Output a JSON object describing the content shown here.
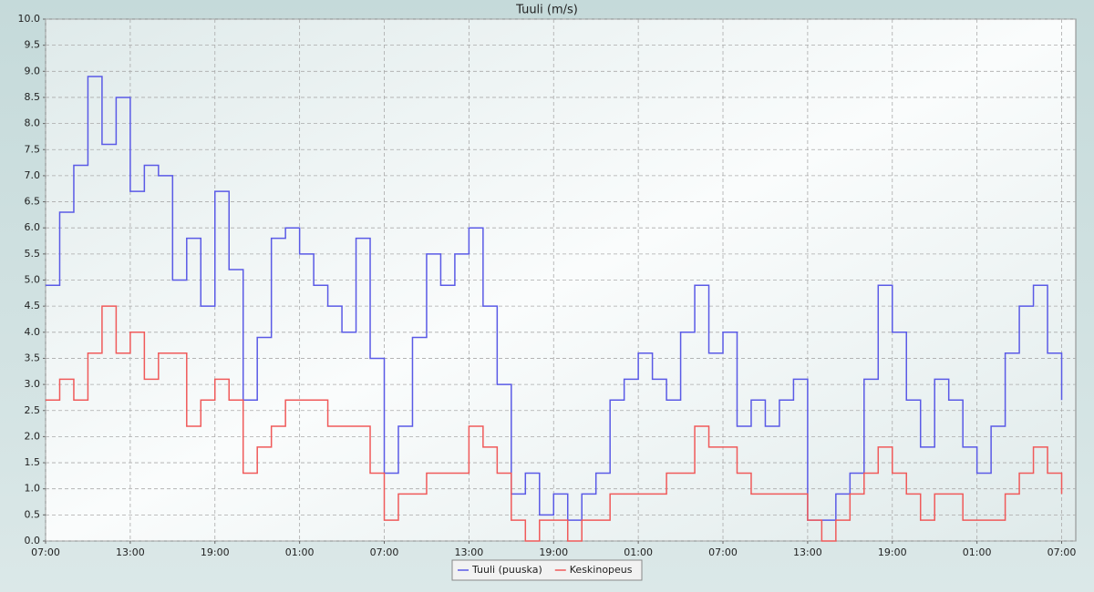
{
  "chart_data": {
    "type": "step",
    "title": "Tuuli (m/s)",
    "x": [
      0,
      1,
      2,
      3,
      4,
      5,
      6,
      7,
      8,
      9,
      10,
      11,
      12,
      13,
      14,
      15,
      16,
      17,
      18,
      19,
      20,
      21,
      22,
      23,
      24,
      25,
      26,
      27,
      28,
      29,
      30,
      31,
      32,
      33,
      34,
      35,
      36,
      37,
      38,
      39,
      40,
      41,
      42,
      43,
      44,
      45,
      46,
      47,
      48,
      49,
      50,
      51,
      52,
      53,
      54,
      55,
      56,
      57,
      58,
      59,
      60,
      61,
      62,
      63,
      64,
      65,
      66,
      67,
      68,
      69,
      70,
      71,
      72
    ],
    "series": [
      {
        "name": "Tuuli (puuska)",
        "color": "#5a5ae6",
        "values": [
          4.9,
          6.3,
          7.2,
          8.9,
          7.6,
          8.5,
          6.7,
          7.2,
          7.0,
          5.0,
          5.8,
          4.5,
          6.7,
          5.2,
          2.7,
          3.9,
          5.8,
          6.0,
          5.5,
          4.9,
          4.5,
          4.0,
          5.8,
          3.5,
          1.3,
          2.2,
          3.9,
          5.5,
          4.9,
          5.5,
          6.0,
          4.5,
          3.0,
          0.9,
          1.3,
          0.5,
          0.9,
          0.4,
          0.9,
          1.3,
          2.7,
          3.1,
          3.6,
          3.1,
          2.7,
          4.0,
          4.9,
          3.6,
          4.0,
          2.2,
          2.7,
          2.2,
          2.7,
          3.1,
          0.4,
          0.4,
          0.9,
          1.3,
          3.1,
          4.9,
          4.0,
          2.7,
          1.8,
          3.1,
          2.7,
          1.8,
          1.3,
          2.2,
          3.6,
          4.5,
          4.9,
          3.6,
          2.7
        ]
      },
      {
        "name": "Keskinopeus",
        "color": "#f05a5a",
        "values": [
          2.7,
          3.1,
          2.7,
          3.6,
          4.5,
          3.6,
          4.0,
          3.1,
          3.6,
          3.6,
          2.2,
          2.7,
          3.1,
          2.7,
          1.3,
          1.8,
          2.2,
          2.7,
          2.7,
          2.7,
          2.2,
          2.2,
          2.2,
          1.3,
          0.4,
          0.9,
          0.9,
          1.3,
          1.3,
          1.3,
          2.2,
          1.8,
          1.3,
          0.4,
          0.0,
          0.4,
          0.4,
          0.0,
          0.4,
          0.4,
          0.9,
          0.9,
          0.9,
          0.9,
          1.3,
          1.3,
          2.2,
          1.8,
          1.8,
          1.3,
          0.9,
          0.9,
          0.9,
          0.9,
          0.4,
          0.0,
          0.4,
          0.9,
          1.3,
          1.8,
          1.3,
          0.9,
          0.4,
          0.9,
          0.9,
          0.4,
          0.4,
          0.4,
          0.9,
          1.3,
          1.8,
          1.3,
          0.9
        ]
      }
    ],
    "xlim": [
      0,
      73
    ],
    "xticks": [
      {
        "value": 0,
        "label": "07:00"
      },
      {
        "value": 6,
        "label": "13:00"
      },
      {
        "value": 12,
        "label": "19:00"
      },
      {
        "value": 18,
        "label": "01:00"
      },
      {
        "value": 24,
        "label": "07:00"
      },
      {
        "value": 30,
        "label": "13:00"
      },
      {
        "value": 36,
        "label": "19:00"
      },
      {
        "value": 42,
        "label": "01:00"
      },
      {
        "value": 48,
        "label": "07:00"
      },
      {
        "value": 54,
        "label": "13:00"
      },
      {
        "value": 60,
        "label": "19:00"
      },
      {
        "value": 66,
        "label": "01:00"
      },
      {
        "value": 72,
        "label": "07:00"
      }
    ],
    "ylim": [
      0,
      10
    ],
    "yticks": [
      {
        "value": 0,
        "label": "0.0"
      },
      {
        "value": 0.5,
        "label": "0.5"
      },
      {
        "value": 1,
        "label": "1.0"
      },
      {
        "value": 1.5,
        "label": "1.5"
      },
      {
        "value": 2,
        "label": "2.0"
      },
      {
        "value": 2.5,
        "label": "2.5"
      },
      {
        "value": 3,
        "label": "3.0"
      },
      {
        "value": 3.5,
        "label": "3.5"
      },
      {
        "value": 4,
        "label": "4.0"
      },
      {
        "value": 4.5,
        "label": "4.5"
      },
      {
        "value": 5,
        "label": "5.0"
      },
      {
        "value": 5.5,
        "label": "5.5"
      },
      {
        "value": 6,
        "label": "6.0"
      },
      {
        "value": 6.5,
        "label": "6.5"
      },
      {
        "value": 7,
        "label": "7.0"
      },
      {
        "value": 7.5,
        "label": "7.5"
      },
      {
        "value": 8,
        "label": "8.0"
      },
      {
        "value": 8.5,
        "label": "8.5"
      },
      {
        "value": 9,
        "label": "9.0"
      },
      {
        "value": 9.5,
        "label": "9.5"
      },
      {
        "value": 10,
        "label": "10.0"
      }
    ],
    "grid": true,
    "legend": "bottom"
  }
}
